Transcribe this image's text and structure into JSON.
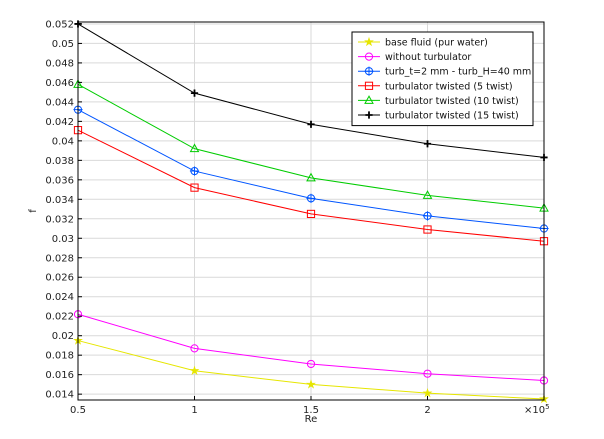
{
  "chart_data": {
    "type": "line",
    "title": "",
    "xlabel": "Re",
    "ylabel": "f",
    "x_multiplier_label": "×10",
    "x_multiplier_exp": "5",
    "x": [
      0.5,
      1,
      1.5,
      2,
      2.5
    ],
    "xlim": [
      0.5,
      2.5
    ],
    "ylim": [
      0.0134,
      0.0522
    ],
    "x_ticks": [
      0.5,
      1,
      1.5,
      2
    ],
    "x_tick_labels": [
      "0.5",
      "1",
      "1.5",
      "2"
    ],
    "y_ticks": [
      0.014,
      0.016,
      0.018,
      0.02,
      0.022,
      0.024,
      0.026,
      0.028,
      0.03,
      0.032,
      0.034,
      0.036,
      0.038,
      0.04,
      0.042,
      0.044,
      0.046,
      0.048,
      0.05,
      0.052
    ],
    "y_tick_labels": [
      "0.014",
      "0.016",
      "0.018",
      "0.02",
      "0.022",
      "0.024",
      "0.026",
      "0.028",
      "0.03",
      "0.032",
      "0.034",
      "0.036",
      "0.038",
      "0.04",
      "0.042",
      "0.044",
      "0.046",
      "0.048",
      "0.05",
      "0.052"
    ],
    "grid": true,
    "legend_position": "top-right",
    "series": [
      {
        "name": "base fluid (pur water)",
        "color": "#e6e600",
        "marker": "star",
        "values": [
          0.0195,
          0.0164,
          0.015,
          0.0141,
          0.0135
        ]
      },
      {
        "name": "without turbulator",
        "color": "#ff00ff",
        "marker": "circle",
        "values": [
          0.0222,
          0.0187,
          0.0171,
          0.0161,
          0.0154
        ]
      },
      {
        "name": "turb_t=2 mm - turb_H=40 mm",
        "color": "#0055ff",
        "marker": "circle-plus",
        "values": [
          0.0432,
          0.0369,
          0.0341,
          0.0323,
          0.031
        ]
      },
      {
        "name": "turbulator twisted (5 twist)",
        "color": "#ff0000",
        "marker": "square",
        "values": [
          0.0411,
          0.0352,
          0.0325,
          0.0309,
          0.0297
        ]
      },
      {
        "name": "turbulator twisted (10 twist)",
        "color": "#00cc00",
        "marker": "triangle",
        "values": [
          0.0458,
          0.0392,
          0.0362,
          0.0344,
          0.0331
        ]
      },
      {
        "name": "turbulator twisted (15 twist)",
        "color": "#000000",
        "marker": "plus",
        "values": [
          0.052,
          0.0449,
          0.0417,
          0.0397,
          0.0383
        ]
      }
    ]
  }
}
